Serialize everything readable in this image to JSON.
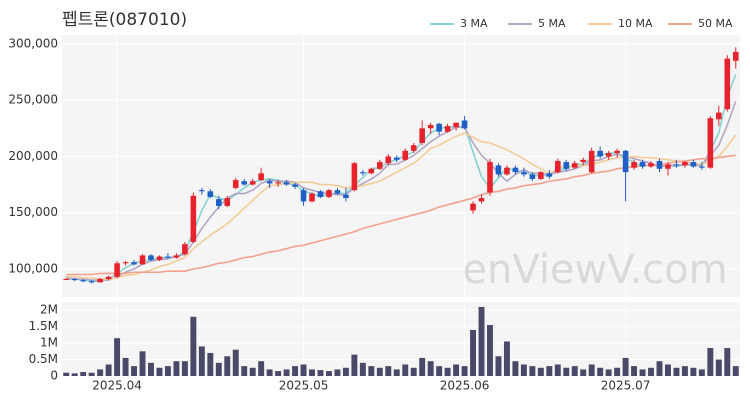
{
  "chart_data": {
    "type": "candlestick",
    "title": "펩트론(087010)",
    "watermark": "enViewV.com",
    "up_color": "#e8222d",
    "down_color": "#1f5fc8",
    "volume_color": "#4a4a68",
    "ylim": [
      75000,
      308000
    ],
    "yticks": [
      {
        "value": 100000,
        "label": "100,000"
      },
      {
        "value": 150000,
        "label": "150,000"
      },
      {
        "value": 200000,
        "label": "200,000"
      },
      {
        "value": 250000,
        "label": "250,000"
      },
      {
        "value": 300000,
        "label": "300,000"
      }
    ],
    "y2lim": [
      0,
      2250000
    ],
    "y2ticks": [
      0,
      {
        "value": 500000,
        "label": "0.5M"
      },
      {
        "value": 1000000,
        "label": "1M"
      },
      {
        "value": 1500000,
        "label": "1.5M"
      },
      {
        "value": 2000000,
        "label": "2M"
      }
    ],
    "xticks": [
      {
        "value": 6,
        "label": "2025.04"
      },
      {
        "value": 28,
        "label": "2025.05"
      },
      {
        "value": 47,
        "label": "2025.06"
      },
      {
        "value": 66,
        "label": "2025.07"
      }
    ],
    "open": [
      91000,
      91000,
      90000,
      89000,
      88000,
      91000,
      93000,
      105000,
      106000,
      104000,
      112000,
      108000,
      111000,
      110000,
      113000,
      124000,
      170000,
      169000,
      162000,
      156000,
      172000,
      178000,
      175000,
      179000,
      178000,
      176000,
      177000,
      175000,
      170000,
      160000,
      169000,
      164000,
      170000,
      166000,
      170000,
      186000,
      185000,
      189000,
      194000,
      199000,
      197000,
      205000,
      212000,
      225000,
      229000,
      222000,
      226000,
      232000,
      152000,
      160000,
      168000,
      192000,
      184000,
      190000,
      186000,
      184000,
      180000,
      185000,
      186000,
      195000,
      190000,
      195000,
      186000,
      205000,
      200000,
      203000,
      205000,
      190000,
      195000,
      191000,
      196000,
      189000,
      193000,
      192000,
      195000,
      191000,
      190000,
      233000,
      242000,
      285000
    ],
    "high": [
      92000,
      92000,
      91000,
      90000,
      92000,
      94000,
      107000,
      107000,
      108000,
      113000,
      113000,
      112000,
      114000,
      114000,
      124000,
      168000,
      172000,
      171000,
      165000,
      165000,
      181000,
      180000,
      180000,
      190000,
      180000,
      179000,
      179000,
      177000,
      172000,
      168000,
      170000,
      171000,
      172000,
      172000,
      195000,
      188000,
      190000,
      197000,
      202000,
      201000,
      207000,
      212000,
      232000,
      230000,
      230000,
      229000,
      230000,
      236000,
      160000,
      166000,
      198000,
      194000,
      192000,
      192000,
      190000,
      186000,
      187000,
      188000,
      198000,
      197000,
      196000,
      199000,
      208000,
      209000,
      205000,
      207000,
      206000,
      197000,
      197000,
      196000,
      198000,
      195000,
      197000,
      196000,
      197000,
      195000,
      236000,
      245000,
      290000,
      297000
    ],
    "low": [
      90000,
      89000,
      88000,
      87000,
      88000,
      90000,
      92000,
      103000,
      103000,
      104000,
      107000,
      107000,
      109000,
      109000,
      112000,
      123000,
      166000,
      163000,
      153000,
      155000,
      171000,
      174000,
      174000,
      178000,
      172000,
      173000,
      174000,
      171000,
      156000,
      159000,
      163000,
      163000,
      166000,
      160000,
      169000,
      183000,
      184000,
      188000,
      192000,
      195000,
      196000,
      203000,
      210000,
      220000,
      219000,
      221000,
      223000,
      224000,
      149000,
      158000,
      165000,
      182000,
      183000,
      184000,
      182000,
      178000,
      179000,
      180000,
      185000,
      187000,
      189000,
      192000,
      185000,
      198000,
      197000,
      199000,
      160000,
      188000,
      189000,
      190000,
      186000,
      183000,
      190000,
      190000,
      190000,
      188000,
      189000,
      227000,
      240000,
      278000
    ],
    "close": [
      91000,
      90000,
      89000,
      88000,
      91000,
      93000,
      105000,
      106000,
      104000,
      112000,
      108000,
      111000,
      110000,
      112000,
      122000,
      165000,
      169000,
      164000,
      156000,
      163000,
      179000,
      175000,
      178000,
      185000,
      176000,
      177000,
      175000,
      173000,
      160000,
      167000,
      164000,
      170000,
      167000,
      163000,
      194000,
      185000,
      189000,
      195000,
      200000,
      197000,
      205000,
      210000,
      225000,
      228000,
      222000,
      227000,
      230000,
      225000,
      158000,
      163000,
      195000,
      184000,
      190000,
      186000,
      184000,
      180000,
      186000,
      182000,
      196000,
      189000,
      194000,
      197000,
      205000,
      200000,
      203000,
      205000,
      186000,
      195000,
      191000,
      194000,
      189000,
      193000,
      192000,
      195000,
      191000,
      190000,
      234000,
      239000,
      287000,
      293000
    ],
    "volume": [
      100000,
      80000,
      120000,
      100000,
      200000,
      350000,
      1150000,
      550000,
      300000,
      750000,
      400000,
      250000,
      300000,
      450000,
      450000,
      1800000,
      900000,
      700000,
      400000,
      600000,
      800000,
      300000,
      250000,
      450000,
      200000,
      150000,
      200000,
      300000,
      350000,
      200000,
      180000,
      150000,
      200000,
      250000,
      650000,
      400000,
      300000,
      250000,
      300000,
      200000,
      350000,
      250000,
      550000,
      450000,
      300000,
      250000,
      350000,
      300000,
      1400000,
      2100000,
      1550000,
      600000,
      1050000,
      450000,
      350000,
      300000,
      250000,
      300000,
      350000,
      250000,
      300000,
      200000,
      350000,
      250000,
      200000,
      250000,
      550000,
      300000,
      200000,
      250000,
      450000,
      350000,
      250000,
      300000,
      250000,
      200000,
      850000,
      500000,
      850000,
      300000
    ],
    "series": [
      {
        "name": "3 MA",
        "color": "#86d3d2",
        "values": [
          91000,
          91000,
          90000,
          89000,
          89000,
          91000,
          96000,
          101000,
          105000,
          107000,
          108000,
          110000,
          110000,
          111000,
          115000,
          133000,
          152000,
          166000,
          163000,
          161000,
          166000,
          172000,
          177000,
          179000,
          180000,
          179000,
          176000,
          175000,
          169000,
          167000,
          164000,
          167000,
          167000,
          167000,
          175000,
          181000,
          189000,
          190000,
          195000,
          197000,
          201000,
          204000,
          213000,
          221000,
          225000,
          226000,
          226000,
          227000,
          204000,
          182000,
          172000,
          181000,
          190000,
          187000,
          187000,
          183000,
          183000,
          183000,
          188000,
          189000,
          193000,
          193000,
          199000,
          201000,
          203000,
          203000,
          198000,
          195000,
          191000,
          193000,
          191000,
          192000,
          191000,
          193000,
          193000,
          192000,
          205000,
          221000,
          253000,
          273000
        ]
      },
      {
        "name": "5 MA",
        "color": "#b3a6c4",
        "values": [
          92000,
          91000,
          91000,
          90000,
          90000,
          90000,
          93000,
          97000,
          100000,
          104000,
          107000,
          108000,
          109000,
          111000,
          113000,
          124000,
          136000,
          146000,
          155000,
          163000,
          167000,
          167000,
          170000,
          176000,
          179000,
          178000,
          178000,
          177000,
          172000,
          170000,
          168000,
          167000,
          166000,
          166000,
          172000,
          176000,
          180000,
          185000,
          193000,
          193000,
          197000,
          201000,
          207000,
          213000,
          218000,
          222000,
          226000,
          226000,
          212000,
          201000,
          194000,
          185000,
          178000,
          184000,
          188000,
          185000,
          185000,
          184000,
          186000,
          187000,
          189000,
          192000,
          196000,
          197000,
          200000,
          202000,
          200000,
          198000,
          196000,
          194000,
          191000,
          192000,
          192000,
          193000,
          192000,
          192000,
          201000,
          210000,
          228000,
          249000
        ]
      },
      {
        "name": "10 MA",
        "color": "#f3cc98",
        "values": [
          93000,
          93000,
          92000,
          92000,
          91000,
          91000,
          92000,
          94000,
          95000,
          97000,
          99000,
          102000,
          104000,
          107000,
          110000,
          118000,
          124000,
          130000,
          135000,
          140000,
          147000,
          154000,
          161000,
          168000,
          174000,
          175000,
          176000,
          177000,
          177000,
          177000,
          175000,
          175000,
          174000,
          172000,
          173000,
          174000,
          176000,
          178000,
          182000,
          186000,
          190000,
          194000,
          200000,
          207000,
          210000,
          214000,
          218000,
          221000,
          217000,
          213000,
          212000,
          209000,
          206000,
          202000,
          198000,
          193000,
          189000,
          185000,
          189000,
          192000,
          191000,
          192000,
          193000,
          195000,
          197000,
          199000,
          199000,
          200000,
          199000,
          199000,
          198000,
          197000,
          196000,
          195000,
          194000,
          193000,
          196000,
          200000,
          209000,
          219000
        ]
      },
      {
        "name": "50 MA",
        "color": "#f3a08e",
        "values": [
          95000,
          95000,
          95000,
          95000,
          96000,
          96000,
          96000,
          96000,
          97000,
          97000,
          97000,
          97000,
          98000,
          98000,
          98000,
          100000,
          101000,
          103000,
          105000,
          106000,
          108000,
          110000,
          111000,
          113000,
          115000,
          116000,
          118000,
          120000,
          121000,
          123000,
          125000,
          127000,
          129000,
          131000,
          133000,
          136000,
          138000,
          140000,
          142000,
          144000,
          146000,
          148000,
          150000,
          152000,
          155000,
          157000,
          159000,
          161000,
          163000,
          166000,
          168000,
          169000,
          171000,
          172000,
          174000,
          175000,
          176000,
          178000,
          179000,
          180000,
          182000,
          183000,
          185000,
          186000,
          187000,
          189000,
          190000,
          191000,
          192000,
          192000,
          193000,
          194000,
          195000,
          196000,
          197000,
          198000,
          198000,
          199000,
          200000,
          201000
        ]
      }
    ]
  }
}
